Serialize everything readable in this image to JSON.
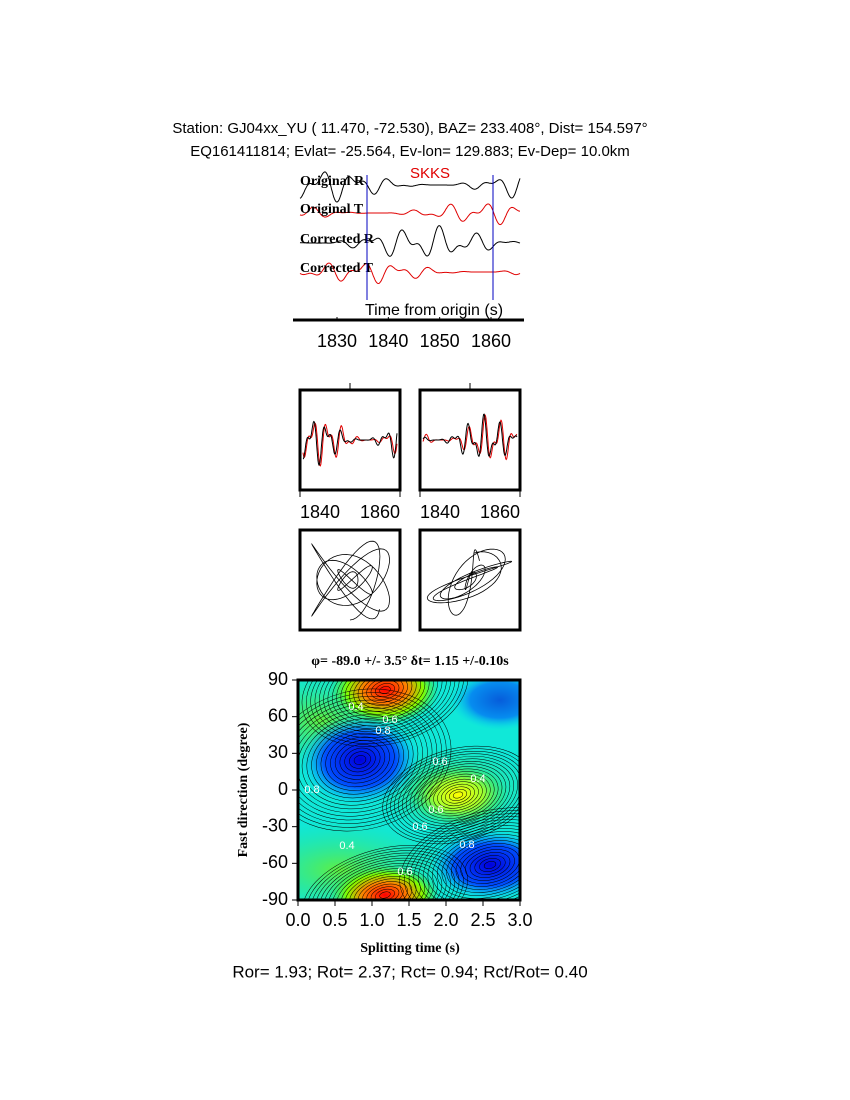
{
  "header": {
    "station": "Station: GJ04xx_YU (  11.470,  -72.530), BAZ=  233.408°, Dist=  154.597°",
    "event": "EQ161411814; Evlat= -25.564, Ev-lon= 129.883; Ev-Dep= 10.0km"
  },
  "traces": {
    "labels": [
      "Original R",
      "Original T",
      "Corrected R",
      "Corrected T"
    ],
    "phase": "SKKS",
    "xlabel": "Time from origin (s)",
    "xticks": [
      1830,
      1840,
      1850,
      1860
    ]
  },
  "windows": {
    "left_xticks": [
      1840,
      1860
    ],
    "right_xticks": [
      1840,
      1860
    ]
  },
  "grid_search": {
    "title": "φ= -89.0 +/- 3.5° δt= 1.15 +/-0.10s",
    "ylabel": "Fast direction (degree)",
    "xlabel": "Splitting time (s)",
    "yticks": [
      90,
      60,
      30,
      0,
      -30,
      -60,
      -90
    ],
    "xticks": [
      "0.0",
      "0.5",
      "1.0",
      "1.5",
      "2.0",
      "2.5",
      "3.0"
    ],
    "contour_labels": [
      "0.4",
      "0.6",
      "0.8",
      "0.6",
      "0.4",
      "0.6",
      "0.8",
      "0.6",
      "0.4",
      "0.8",
      "0.6"
    ]
  },
  "footer": "Ror= 1.93; Rot= 2.37; Rct= 0.94; Rct/Rot= 0.40"
}
